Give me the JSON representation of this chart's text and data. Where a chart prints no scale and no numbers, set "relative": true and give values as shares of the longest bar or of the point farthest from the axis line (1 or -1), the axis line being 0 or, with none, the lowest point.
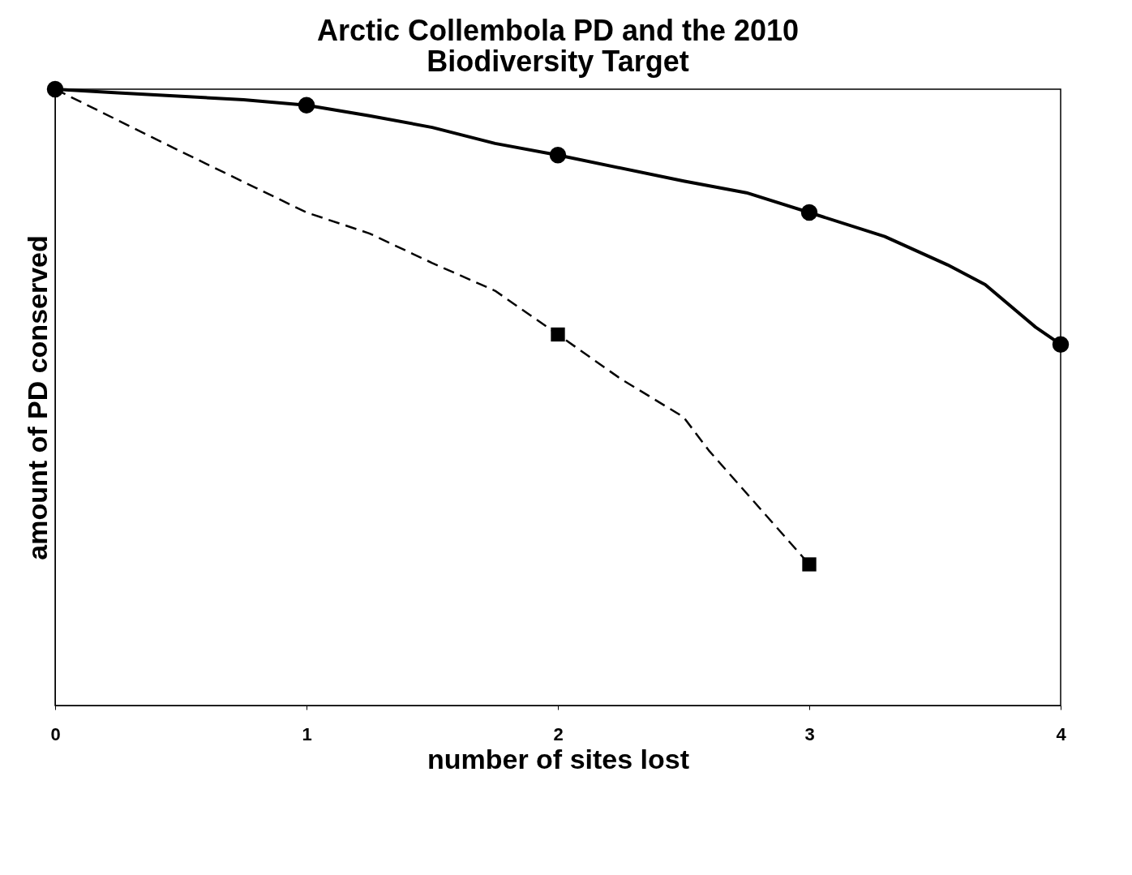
{
  "chart_data": {
    "type": "line",
    "title": "Arctic Collembola PD and the 2010\nBiodiversity Target",
    "xlabel": "number of sites lost",
    "ylabel": "amount of PD conserved",
    "relative": true,
    "xlim": [
      0,
      4
    ],
    "xticks": [
      0,
      1,
      2,
      3,
      4
    ],
    "grid": false,
    "tick_labels": "x",
    "series": [
      {
        "type": "line",
        "color": "#000000",
        "line_style": "solid",
        "marker": "none",
        "x": [
          0,
          0.25,
          0.75,
          1,
          1.25,
          1.5,
          1.75,
          2,
          2.5,
          2.75,
          3,
          3.3,
          3.55,
          3.7,
          3.9,
          4
        ],
        "values": [
          1,
          0.994,
          0.983,
          0.974,
          0.957,
          0.938,
          0.912,
          0.893,
          0.851,
          0.832,
          0.8,
          0.761,
          0.715,
          0.683,
          0.614,
          0.586
        ]
      },
      {
        "type": "scatter",
        "color": "#000000",
        "marker": "circle",
        "x": [
          0,
          1,
          2,
          3,
          4
        ],
        "values": [
          1,
          0.974,
          0.893,
          0.8,
          0.586
        ]
      },
      {
        "type": "line",
        "color": "#000000",
        "line_style": "dashed",
        "marker": "none",
        "x": [
          0,
          0.5,
          1,
          1.25,
          1.5,
          1.75,
          2,
          2.25,
          2.5,
          2.6,
          3
        ],
        "values": [
          1,
          0.899,
          0.8,
          0.766,
          0.718,
          0.673,
          0.602,
          0.53,
          0.468,
          0.414,
          0.229
        ]
      },
      {
        "type": "scatter",
        "color": "#000000",
        "marker": "square",
        "x": [
          2,
          3
        ],
        "values": [
          0.602,
          0.229
        ]
      }
    ]
  }
}
